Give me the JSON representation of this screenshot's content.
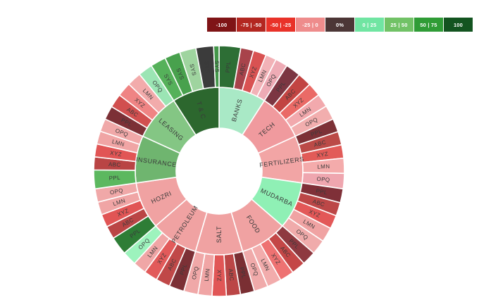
{
  "chart_data": {
    "type": "sunburst",
    "rings": [
      "sector",
      "symbol"
    ],
    "legend_position": "top-right",
    "legend": [
      {
        "label": "-100",
        "color": "#7f1416"
      },
      {
        "label": "-75 | -50",
        "color": "#b32721"
      },
      {
        "label": "-50 | -25",
        "color": "#e93229"
      },
      {
        "label": "-25 | 0",
        "color": "#ee8c8c"
      },
      {
        "label": "0%",
        "color": "#4c3636"
      },
      {
        "label": "0 | 25",
        "color": "#70e5a2"
      },
      {
        "label": "25 | 50",
        "color": "#71c266"
      },
      {
        "label": "50 | 75",
        "color": "#2f9c36"
      },
      {
        "label": "100",
        "color": "#135420"
      }
    ],
    "sectors": [
      {
        "label": "BANKS",
        "color": "#a9e9c6",
        "children": [
          {
            "label": "PPL",
            "color": "#2d6e35",
            "weight": 10.0
          },
          {
            "label": "ABC",
            "color": "#a8434b",
            "weight": 6.0
          },
          {
            "label": "XYZ",
            "color": "#d95252",
            "weight": 6.0
          },
          {
            "label": "LMN",
            "color": "#f2b2b7",
            "weight": 5.0
          },
          {
            "label": "OPQ",
            "color": "#eeabb5",
            "weight": 5.7
          }
        ]
      },
      {
        "label": "TECH",
        "color": "#f09a9e",
        "children": [
          {
            "label": "PPL",
            "color": "#7c3642",
            "weight": 7.0
          },
          {
            "label": "ABC",
            "color": "#c24442",
            "weight": 6.5
          },
          {
            "label": "XYZ",
            "color": "#ea6a66",
            "weight": 6.3
          },
          {
            "label": "LMN",
            "color": "#f2a9ad",
            "weight": 6.2
          },
          {
            "label": "OPQ",
            "color": "#f2aeae",
            "weight": 6.7
          }
        ]
      },
      {
        "label": "FERTILIZERS",
        "color": "#f2a5a5",
        "children": [
          {
            "label": "PPL",
            "color": "#7c3136",
            "weight": 6.2
          },
          {
            "label": "ABC",
            "color": "#bb4a47",
            "weight": 6.2
          },
          {
            "label": "XYZ",
            "color": "#e25b58",
            "weight": 6.2
          },
          {
            "label": "LMN",
            "color": "#f4abab",
            "weight": 7.0
          },
          {
            "label": "OPQ",
            "color": "#efa6af",
            "weight": 7.1
          }
        ]
      },
      {
        "label": "MUDARBA",
        "color": "#8ff0b5",
        "children": [
          {
            "label": "PPL",
            "color": "#7f3038",
            "weight": 6.5
          },
          {
            "label": "ABC",
            "color": "#bc4747",
            "weight": 6.2
          },
          {
            "label": "XYZ",
            "color": "#e35858",
            "weight": 6.3
          },
          {
            "label": "LMN",
            "color": "#f0a3a3",
            "weight": 6.8
          },
          {
            "label": "OPQ",
            "color": "#f0abab",
            "weight": 6.9
          }
        ]
      },
      {
        "label": "FOOD",
        "color": "#f0a2a2",
        "children": [
          {
            "label": "PPL",
            "color": "#8e3940",
            "weight": 6.5
          },
          {
            "label": "ABC",
            "color": "#c44747",
            "weight": 6.5
          },
          {
            "label": "XYZ",
            "color": "#ee7272",
            "weight": 6.6
          },
          {
            "label": "LMN",
            "color": "#f2acac",
            "weight": 6.6
          },
          {
            "label": "OPQ",
            "color": "#f0aaaa",
            "weight": 6.5
          }
        ]
      },
      {
        "label": "SALT",
        "color": "#f0a2a2",
        "children": [
          {
            "label": "PPL",
            "color": "#7a2f33",
            "weight": 6.5
          },
          {
            "label": "ABC",
            "color": "#bb4646",
            "weight": 6.5
          },
          {
            "label": "XYZ",
            "color": "#e15656",
            "weight": 6.6
          },
          {
            "label": "LMN",
            "color": "#f0a5a5",
            "weight": 6.5
          },
          {
            "label": "OPQ",
            "color": "#f0a8a8",
            "weight": 6.6
          }
        ]
      },
      {
        "label": "PETROLEUM",
        "color": "#f0a2a2",
        "children": [
          {
            "label": "PPL",
            "color": "#7c3036",
            "weight": 7.0
          },
          {
            "label": "ABC",
            "color": "#c04848",
            "weight": 6.6
          },
          {
            "label": "XYZ",
            "color": "#e25a5a",
            "weight": 6.3
          },
          {
            "label": "LMN",
            "color": "#f0a6a6",
            "weight": 6.2
          },
          {
            "label": "OPQ",
            "color": "#9df3bd",
            "weight": 6.6
          }
        ]
      },
      {
        "label": "HOZRI",
        "color": "#f0a2a2",
        "children": [
          {
            "label": "PPL",
            "color": "#2e7d36",
            "weight": 8.5
          },
          {
            "label": "ABC",
            "color": "#ba4545",
            "weight": 6.0
          },
          {
            "label": "XYZ",
            "color": "#e15555",
            "weight": 6.0
          },
          {
            "label": "LMN",
            "color": "#f0a5a5",
            "weight": 6.0
          },
          {
            "label": "OPQ",
            "color": "#f0a8a8",
            "weight": 6.2
          }
        ]
      },
      {
        "label": "INSURANCE",
        "color": "#6fb56f",
        "children": [
          {
            "label": "PPL",
            "color": "#5cb85f",
            "weight": 8.7
          },
          {
            "label": "ABC",
            "color": "#b94444",
            "weight": 6.0
          },
          {
            "label": "XYZ",
            "color": "#e15555",
            "weight": 6.0
          },
          {
            "label": "LMN",
            "color": "#f0a5a5",
            "weight": 6.0
          },
          {
            "label": "OPQ",
            "color": "#f0a8a8",
            "weight": 6.0
          }
        ]
      },
      {
        "label": "LEASING",
        "color": "#84c684",
        "children": [
          {
            "label": "PPL",
            "color": "#7c3036",
            "weight": 6.4
          },
          {
            "label": "ABC",
            "color": "#d14f4f",
            "weight": 6.4
          },
          {
            "label": "XYZ",
            "color": "#ef8484",
            "weight": 6.6
          },
          {
            "label": "LMN",
            "color": "#f2abab",
            "weight": 6.6
          },
          {
            "label": "OPQ",
            "color": "#9be5b4",
            "weight": 6.7
          }
        ]
      },
      {
        "label": "T & C",
        "color": "#2c672e",
        "children": [
          {
            "label": "SYS",
            "color": "#55b15a",
            "weight": 7.2
          },
          {
            "label": "SYS",
            "color": "#48a14d",
            "weight": 7.2
          },
          {
            "label": "SYS",
            "color": "#9fd49f",
            "weight": 7.6
          },
          {
            "label": "SYS",
            "color": "#3b3b3b",
            "weight": 8.2
          },
          {
            "label": "SYS",
            "color": "#44974a",
            "weight": 2.5
          }
        ]
      }
    ]
  }
}
